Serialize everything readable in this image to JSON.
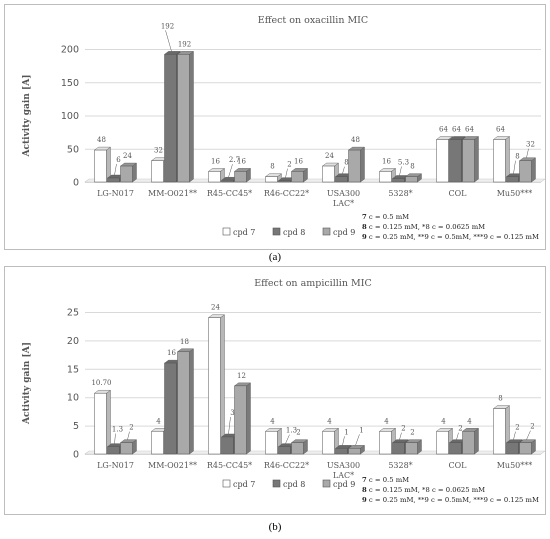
{
  "series_colors": [
    "#ffffff",
    "#777777",
    "#a9a9a9"
  ],
  "chart_data": [
    {
      "type": "bar",
      "title": "Effect on oxacillin MIC",
      "ylabel": "Activity gain [A]",
      "ylim": [
        0,
        200
      ],
      "yticks": [
        0,
        50,
        100,
        150,
        200
      ],
      "categories": [
        "LG-N017",
        "MM-O021**",
        "R45-CC45*",
        "R46-CC22*",
        "USA300|LAC*",
        "5328*",
        "COL",
        "Mu50***"
      ],
      "series": [
        {
          "name": "cpd 7",
          "values": [
            48,
            32,
            16,
            8,
            24,
            16,
            64,
            64
          ],
          "labels": [
            "48",
            "32",
            "16",
            "8",
            "24",
            "16",
            "64",
            "64"
          ]
        },
        {
          "name": "cpd 8",
          "values": [
            6,
            192,
            2.7,
            2,
            8,
            5.3,
            64,
            8
          ],
          "labels": [
            "6",
            "192",
            "2.7",
            "2",
            "8",
            "5.3",
            "64",
            "8"
          ]
        },
        {
          "name": "cpd 9",
          "values": [
            24,
            192,
            16,
            16,
            48,
            8,
            64,
            32
          ],
          "labels": [
            "24",
            "192",
            "16",
            "16",
            "48",
            "8",
            "64",
            "32"
          ]
        }
      ],
      "notes": [
        {
          "bold": "7",
          "text": " c = 0.5 mM"
        },
        {
          "bold": "8",
          "text": " c = 0.125 mM, *8 c = 0.0625 mM"
        },
        {
          "bold": "9",
          "text": " c = 0.25 mM, **9 c = 0.5mM, ***9 c = 0.125 mM"
        }
      ],
      "legend_position": "bottom-left",
      "caption": "(a)"
    },
    {
      "type": "bar",
      "title": "Effect on ampicillin MIC",
      "ylabel": "Activity gain [A]",
      "ylim": [
        0,
        25
      ],
      "yticks": [
        0,
        5,
        10,
        15,
        20,
        25
      ],
      "categories": [
        "LG-N017",
        "MM-O021**",
        "R45-CC45*",
        "R46-CC22*",
        "USA300|LAC*",
        "5328*",
        "COL",
        "Mu50***"
      ],
      "series": [
        {
          "name": "cpd 7",
          "values": [
            10.7,
            4,
            24,
            4,
            4,
            4,
            4,
            8
          ],
          "labels": [
            "10.70",
            "4",
            "24",
            "4",
            "4",
            "4",
            "4",
            "8"
          ]
        },
        {
          "name": "cpd 8",
          "values": [
            1.3,
            16,
            3,
            1.3,
            1,
            2,
            2,
            2
          ],
          "labels": [
            "1.3",
            "16",
            "3",
            "1.3",
            "1",
            "2",
            "2",
            "2"
          ]
        },
        {
          "name": "cpd 9",
          "values": [
            2,
            18,
            12,
            2,
            1,
            2,
            4,
            2
          ],
          "labels": [
            "2",
            "18",
            "12",
            "2",
            "1",
            "2",
            "4",
            "2"
          ]
        }
      ],
      "notes": [
        {
          "bold": "7",
          "text": " c = 0.5 mM"
        },
        {
          "bold": "8",
          "text": " c = 0.125 mM, *8 c = 0.0625 mM"
        },
        {
          "bold": "9",
          "text": " c = 0.25 mM, **9 c = 0.5mM, ***9 c = 0.125 mM"
        }
      ],
      "legend_position": "bottom-left",
      "caption": "(b)"
    }
  ]
}
